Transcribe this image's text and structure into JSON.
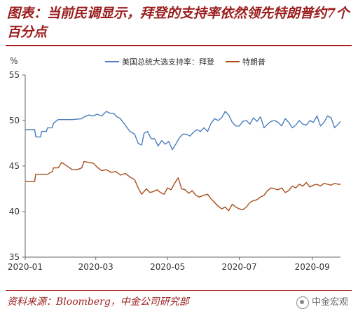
{
  "header": {
    "title": "图表：当前民调显示，拜登的支持率依然领先特朗普约7个百分点"
  },
  "footer": {
    "source": "资料来源：Bloomberg，中金公司研究部",
    "watermark": "中金宏观"
  },
  "chart_data": {
    "type": "line",
    "title": "",
    "ylabel": "%",
    "ylim": [
      35,
      55
    ],
    "yticks": [
      35,
      40,
      45,
      50,
      55
    ],
    "xlim": [
      "2020-01-01",
      "2020-09-25"
    ],
    "xticks": [
      "2020-01",
      "2020-03",
      "2020-05",
      "2020-07",
      "2020-09"
    ],
    "grid": false,
    "legend": "top",
    "series": [
      {
        "name": "美国总统大选支持率：拜登",
        "color": "#4a7ebb",
        "x": [
          "2020-01-01",
          "2020-01-09",
          "2020-01-10",
          "2020-01-14",
          "2020-01-15",
          "2020-01-19",
          "2020-01-20",
          "2020-01-24",
          "2020-01-25",
          "2020-01-29",
          "2020-02-02",
          "2020-02-10",
          "2020-02-18",
          "2020-02-20",
          "2020-02-24",
          "2020-02-28",
          "2020-03-02",
          "2020-03-06",
          "2020-03-10",
          "2020-03-13",
          "2020-03-16",
          "2020-03-19",
          "2020-03-22",
          "2020-03-26",
          "2020-03-30",
          "2020-04-03",
          "2020-04-06",
          "2020-04-09",
          "2020-04-11",
          "2020-04-14",
          "2020-04-17",
          "2020-04-20",
          "2020-04-23",
          "2020-04-26",
          "2020-04-29",
          "2020-05-02",
          "2020-05-05",
          "2020-05-08",
          "2020-05-11",
          "2020-05-14",
          "2020-05-17",
          "2020-05-20",
          "2020-05-23",
          "2020-05-26",
          "2020-05-29",
          "2020-06-01",
          "2020-06-04",
          "2020-06-07",
          "2020-06-10",
          "2020-06-13",
          "2020-06-16",
          "2020-06-19",
          "2020-06-22",
          "2020-06-25",
          "2020-06-28",
          "2020-07-01",
          "2020-07-04",
          "2020-07-07",
          "2020-07-10",
          "2020-07-13",
          "2020-07-16",
          "2020-07-19",
          "2020-07-22",
          "2020-07-25",
          "2020-07-28",
          "2020-07-31",
          "2020-08-03",
          "2020-08-06",
          "2020-08-09",
          "2020-08-12",
          "2020-08-15",
          "2020-08-18",
          "2020-08-21",
          "2020-08-24",
          "2020-08-27",
          "2020-08-30",
          "2020-09-02",
          "2020-09-05",
          "2020-09-08",
          "2020-09-11",
          "2020-09-14",
          "2020-09-17",
          "2020-09-20",
          "2020-09-23",
          "2020-09-25"
        ],
        "values": [
          49.0,
          49.0,
          48.2,
          48.2,
          48.8,
          48.8,
          49.2,
          49.2,
          49.7,
          50.1,
          50.1,
          50.1,
          50.2,
          50.4,
          50.6,
          50.5,
          50.7,
          50.5,
          51.0,
          50.8,
          50.8,
          50.4,
          50.2,
          49.5,
          48.8,
          48.5,
          47.5,
          47.3,
          48.6,
          48.8,
          48.0,
          48.0,
          47.2,
          47.8,
          47.4,
          47.7,
          46.8,
          47.4,
          48.1,
          48.5,
          48.5,
          48.3,
          48.7,
          49.0,
          48.8,
          49.2,
          48.8,
          49.7,
          50.2,
          50.0,
          50.3,
          51.0,
          50.6,
          49.8,
          49.4,
          49.4,
          49.9,
          50.0,
          49.6,
          50.3,
          49.9,
          50.4,
          49.2,
          49.6,
          49.9,
          50.0,
          49.8,
          49.4,
          50.2,
          49.8,
          49.2,
          49.5,
          50.0,
          49.6,
          49.5,
          50.0,
          49.8,
          50.5,
          49.4,
          49.8,
          50.5,
          50.3,
          49.2,
          49.6,
          49.9
        ]
      },
      {
        "name": "特朗普",
        "color": "#a84d1a",
        "x": [
          "2020-01-01",
          "2020-01-09",
          "2020-01-10",
          "2020-01-20",
          "2020-01-24",
          "2020-01-25",
          "2020-01-29",
          "2020-02-01",
          "2020-02-10",
          "2020-02-14",
          "2020-02-18",
          "2020-02-20",
          "2020-02-24",
          "2020-02-28",
          "2020-03-02",
          "2020-03-06",
          "2020-03-10",
          "2020-03-14",
          "2020-03-18",
          "2020-03-22",
          "2020-03-26",
          "2020-03-30",
          "2020-04-03",
          "2020-04-06",
          "2020-04-09",
          "2020-04-13",
          "2020-04-16",
          "2020-04-19",
          "2020-04-22",
          "2020-04-25",
          "2020-04-28",
          "2020-05-01",
          "2020-05-04",
          "2020-05-07",
          "2020-05-10",
          "2020-05-13",
          "2020-05-16",
          "2020-05-19",
          "2020-05-22",
          "2020-05-25",
          "2020-05-28",
          "2020-06-01",
          "2020-06-04",
          "2020-06-07",
          "2020-06-10",
          "2020-06-13",
          "2020-06-16",
          "2020-06-19",
          "2020-06-22",
          "2020-06-25",
          "2020-06-28",
          "2020-07-01",
          "2020-07-04",
          "2020-07-07",
          "2020-07-10",
          "2020-07-13",
          "2020-07-16",
          "2020-07-19",
          "2020-07-22",
          "2020-07-25",
          "2020-07-28",
          "2020-07-31",
          "2020-08-03",
          "2020-08-06",
          "2020-08-09",
          "2020-08-12",
          "2020-08-15",
          "2020-08-18",
          "2020-08-21",
          "2020-08-24",
          "2020-08-27",
          "2020-08-30",
          "2020-09-02",
          "2020-09-05",
          "2020-09-08",
          "2020-09-11",
          "2020-09-14",
          "2020-09-17",
          "2020-09-20",
          "2020-09-23",
          "2020-09-25"
        ],
        "values": [
          43.3,
          43.3,
          44.1,
          44.1,
          44.4,
          44.8,
          44.8,
          45.4,
          44.6,
          44.6,
          44.8,
          45.5,
          45.4,
          45.3,
          44.9,
          44.5,
          44.6,
          44.3,
          44.4,
          44.0,
          44.2,
          43.8,
          43.5,
          42.6,
          41.9,
          42.5,
          42.1,
          42.2,
          42.4,
          42.1,
          41.9,
          42.6,
          42.4,
          43.1,
          43.7,
          42.5,
          42.4,
          42.0,
          42.3,
          41.8,
          41.6,
          41.8,
          41.9,
          41.4,
          41.0,
          40.6,
          40.3,
          40.5,
          40.1,
          40.8,
          40.5,
          40.3,
          40.2,
          40.5,
          41.0,
          41.2,
          41.3,
          41.6,
          41.8,
          42.3,
          42.6,
          42.5,
          42.4,
          42.6,
          42.1,
          42.3,
          42.8,
          42.6,
          43.0,
          42.8,
          43.2,
          42.7,
          42.9,
          43.0,
          42.8,
          43.1,
          43.0,
          42.9,
          43.1,
          43.0,
          43.0
        ]
      }
    ]
  }
}
